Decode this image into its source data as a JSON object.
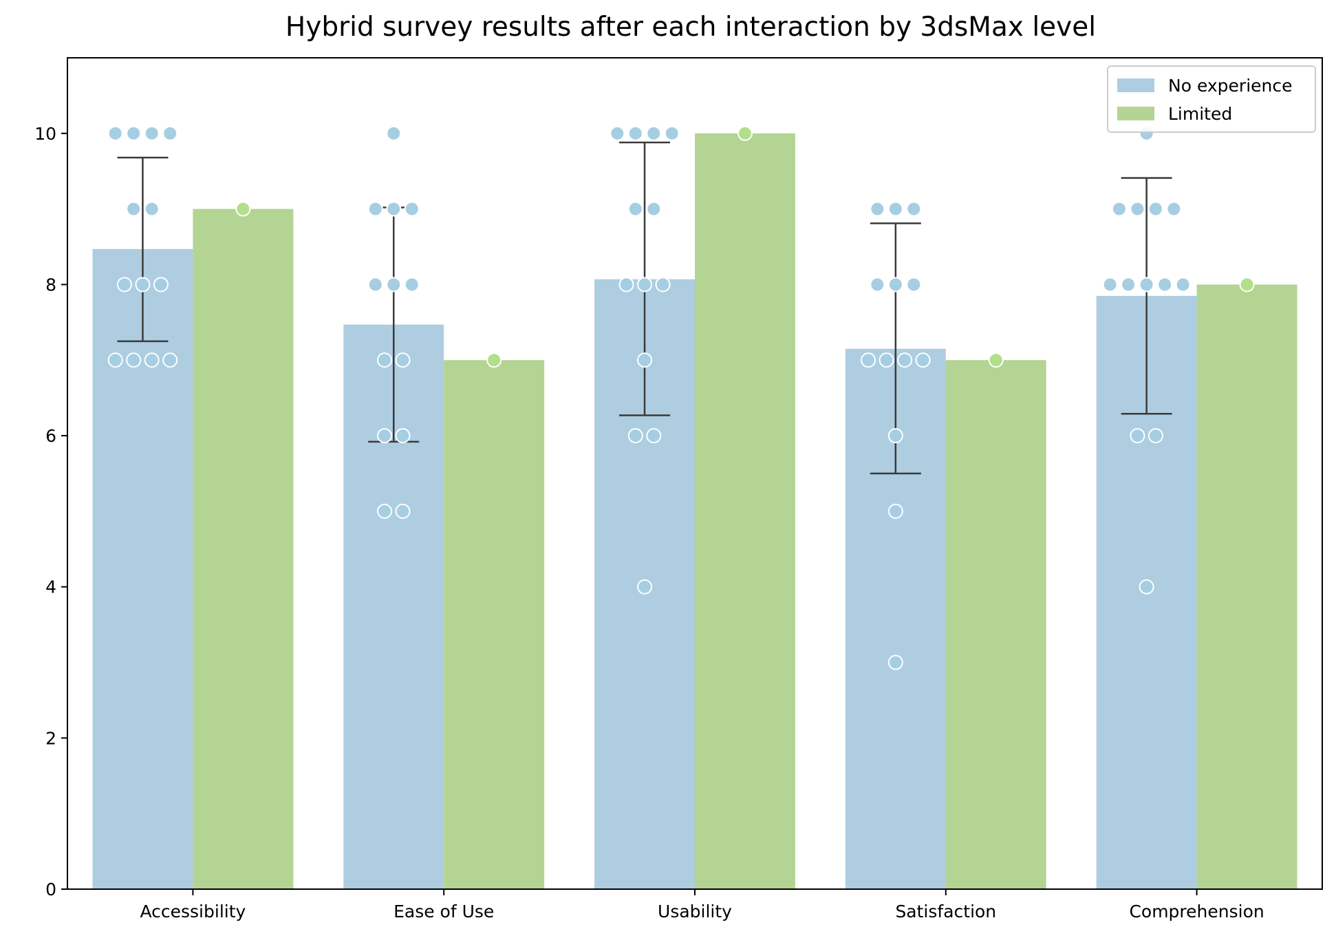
{
  "chart_data": {
    "type": "bar",
    "title": "Hybrid survey results after each interaction by 3dsMax level",
    "xlabel": "",
    "ylabel": "",
    "categories": [
      "Accessibility",
      "Ease of Use",
      "Usability",
      "Satisfaction",
      "Comprehension"
    ],
    "ylim": [
      0,
      11
    ],
    "yticks": [
      0,
      2,
      4,
      6,
      8,
      10
    ],
    "grid": false,
    "legend_position": "top-right",
    "series": [
      {
        "name": "No experience",
        "color": "#aecde1",
        "point_color": "#a6cee3",
        "values": [
          8.47,
          7.47,
          8.07,
          7.15,
          7.85
        ],
        "error_low": [
          7.25,
          5.92,
          6.27,
          5.5,
          6.29
        ],
        "error_high": [
          9.68,
          9.02,
          9.88,
          8.81,
          9.41
        ]
      },
      {
        "name": "Limited",
        "color": "#b3d493",
        "point_color": "#b2df8a",
        "values": [
          9,
          7,
          10,
          7,
          8
        ]
      }
    ],
    "points": {
      "No experience": {
        "Accessibility": [
          10,
          10,
          10,
          10,
          9,
          9,
          8,
          8,
          8,
          7,
          7,
          7,
          7
        ],
        "Ease of Use": [
          10,
          9,
          9,
          9,
          8,
          8,
          8,
          7,
          7,
          6,
          6,
          5,
          5
        ],
        "Usability": [
          10,
          10,
          10,
          10,
          9,
          9,
          8,
          8,
          8,
          7,
          6,
          6,
          4
        ],
        "Satisfaction": [
          9,
          9,
          9,
          8,
          8,
          8,
          7,
          7,
          7,
          7,
          6,
          5,
          3
        ],
        "Comprehension": [
          10,
          9,
          9,
          9,
          9,
          8,
          8,
          8,
          8,
          8,
          6,
          6,
          4
        ]
      },
      "Limited": {
        "Accessibility": [
          9
        ],
        "Ease of Use": [
          7
        ],
        "Usability": [
          10
        ],
        "Satisfaction": [
          7
        ],
        "Comprehension": [
          8
        ]
      }
    }
  }
}
